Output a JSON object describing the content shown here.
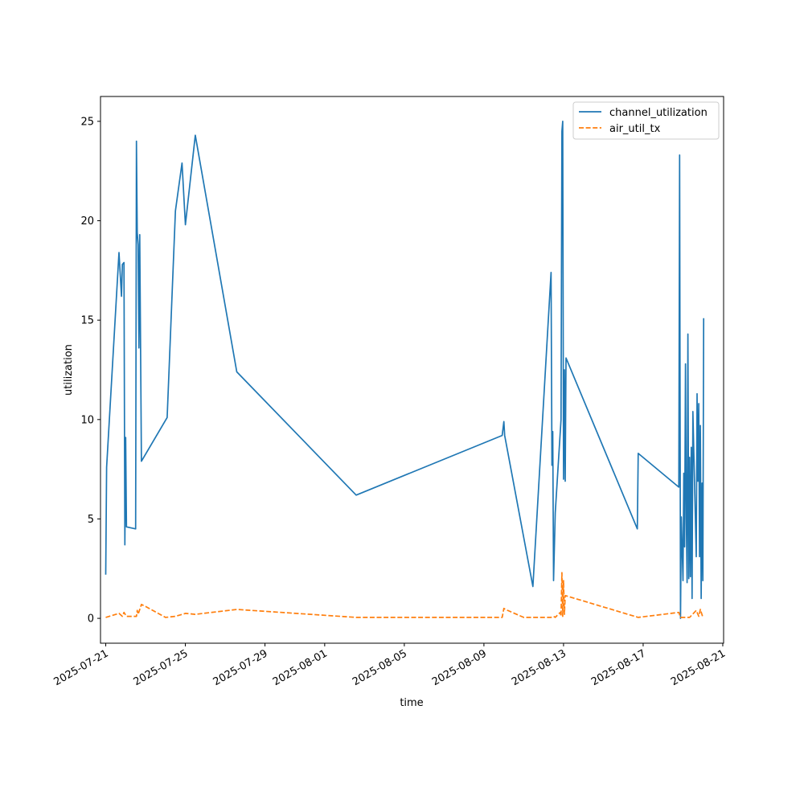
{
  "chart_data": {
    "type": "line",
    "title": "",
    "xlabel": "time",
    "ylabel": "utilization",
    "x_axis": "date",
    "xlim": [
      "2025-07-20T17:40",
      "2025-08-21T01:00"
    ],
    "ylim": [
      -1.25,
      26.25
    ],
    "yticks": [
      0,
      5,
      10,
      15,
      20,
      25
    ],
    "xticks": [
      "2025-07-21",
      "2025-07-25",
      "2025-07-29",
      "2025-08-01",
      "2025-08-05",
      "2025-08-09",
      "2025-08-13",
      "2025-08-17",
      "2025-08-21"
    ],
    "grid": false,
    "legend_position": "top-right",
    "series": [
      {
        "name": "channel_utilization",
        "color": "#1f77b4",
        "dash": "solid",
        "points": [
          [
            "2025-07-21T00:00",
            2.2
          ],
          [
            "2025-07-21T01:00",
            7.6
          ],
          [
            "2025-07-21T16:00",
            18.4
          ],
          [
            "2025-07-21T19:00",
            16.2
          ],
          [
            "2025-07-21T20:00",
            17.8
          ],
          [
            "2025-07-21T22:00",
            17.9
          ],
          [
            "2025-07-21T23:00",
            3.7
          ],
          [
            "2025-07-22T00:00",
            9.1
          ],
          [
            "2025-07-22T01:00",
            4.6
          ],
          [
            "2025-07-22T12:00",
            4.5
          ],
          [
            "2025-07-22T13:00",
            24.0
          ],
          [
            "2025-07-22T14:00",
            19.4
          ],
          [
            "2025-07-22T15:00",
            18.8
          ],
          [
            "2025-07-22T16:00",
            13.6
          ],
          [
            "2025-07-22T17:00",
            19.3
          ],
          [
            "2025-07-22T19:00",
            7.9
          ],
          [
            "2025-07-24T02:00",
            10.1
          ],
          [
            "2025-07-24T12:00",
            20.5
          ],
          [
            "2025-07-24T20:00",
            22.9
          ],
          [
            "2025-07-25T00:00",
            19.8
          ],
          [
            "2025-07-25T12:00",
            24.3
          ],
          [
            "2025-07-27T14:00",
            12.4
          ],
          [
            "2025-08-02T14:00",
            6.2
          ],
          [
            "2025-08-09T22:00",
            9.2
          ],
          [
            "2025-08-10T00:00",
            9.9
          ],
          [
            "2025-08-10T01:00",
            9.2
          ],
          [
            "2025-08-11T11:00",
            1.6
          ],
          [
            "2025-08-12T09:00",
            17.4
          ],
          [
            "2025-08-12T10:00",
            7.7
          ],
          [
            "2025-08-12T11:00",
            9.4
          ],
          [
            "2025-08-12T12:00",
            1.9
          ],
          [
            "2025-08-12T14:00",
            5.3
          ],
          [
            "2025-08-12T21:00",
            10.0
          ],
          [
            "2025-08-12T22:00",
            24.5
          ],
          [
            "2025-08-12T23:00",
            25.0
          ],
          [
            "2025-08-13T00:00",
            7.0
          ],
          [
            "2025-08-13T01:00",
            12.5
          ],
          [
            "2025-08-13T02:00",
            6.9
          ],
          [
            "2025-08-13T03:00",
            13.1
          ],
          [
            "2025-08-16T17:00",
            4.5
          ],
          [
            "2025-08-16T18:00",
            8.3
          ],
          [
            "2025-08-18T19:00",
            6.6
          ],
          [
            "2025-08-18T20:00",
            23.3
          ],
          [
            "2025-08-18T21:00",
            0.0
          ],
          [
            "2025-08-18T22:00",
            5.1
          ],
          [
            "2025-08-19T00:00",
            1.9
          ],
          [
            "2025-08-19T01:00",
            7.3
          ],
          [
            "2025-08-19T02:00",
            3.6
          ],
          [
            "2025-08-19T03:00",
            12.8
          ],
          [
            "2025-08-19T04:00",
            5.1
          ],
          [
            "2025-08-19T05:00",
            1.8
          ],
          [
            "2025-08-19T06:00",
            14.3
          ],
          [
            "2025-08-19T07:00",
            2.0
          ],
          [
            "2025-08-19T08:00",
            8.1
          ],
          [
            "2025-08-19T09:00",
            2.1
          ],
          [
            "2025-08-19T10:00",
            8.6
          ],
          [
            "2025-08-19T11:00",
            1.0
          ],
          [
            "2025-08-19T12:00",
            10.4
          ],
          [
            "2025-08-19T16:00",
            3.1
          ],
          [
            "2025-08-19T17:00",
            11.3
          ],
          [
            "2025-08-19T18:00",
            6.9
          ],
          [
            "2025-08-19T19:00",
            10.8
          ],
          [
            "2025-08-19T20:00",
            3.1
          ],
          [
            "2025-08-19T21:00",
            9.7
          ],
          [
            "2025-08-19T22:00",
            1.0
          ],
          [
            "2025-08-19T23:00",
            6.8
          ],
          [
            "2025-08-20T00:00",
            1.9
          ],
          [
            "2025-08-20T01:00",
            15.1
          ]
        ]
      },
      {
        "name": "air_util_tx",
        "color": "#ff7f0e",
        "dash": "dashed",
        "points": [
          [
            "2025-07-21T00:00",
            0.05
          ],
          [
            "2025-07-21T16:00",
            0.25
          ],
          [
            "2025-07-21T20:00",
            0.1
          ],
          [
            "2025-07-21T22:00",
            0.3
          ],
          [
            "2025-07-22T01:00",
            0.1
          ],
          [
            "2025-07-22T13:00",
            0.1
          ],
          [
            "2025-07-22T14:00",
            0.4
          ],
          [
            "2025-07-22T15:00",
            0.2
          ],
          [
            "2025-07-22T19:00",
            0.7
          ],
          [
            "2025-07-23T00:00",
            0.6
          ],
          [
            "2025-07-24T00:00",
            0.05
          ],
          [
            "2025-07-24T12:00",
            0.1
          ],
          [
            "2025-07-25T00:00",
            0.25
          ],
          [
            "2025-07-25T12:00",
            0.2
          ],
          [
            "2025-07-27T14:00",
            0.45
          ],
          [
            "2025-08-02T14:00",
            0.05
          ],
          [
            "2025-08-09T22:00",
            0.05
          ],
          [
            "2025-08-10T00:00",
            0.5
          ],
          [
            "2025-08-10T02:00",
            0.45
          ],
          [
            "2025-08-11T00:00",
            0.05
          ],
          [
            "2025-08-12T09:00",
            0.05
          ],
          [
            "2025-08-12T12:00",
            0.1
          ],
          [
            "2025-08-12T14:00",
            0.05
          ],
          [
            "2025-08-12T20:00",
            0.3
          ],
          [
            "2025-08-12T21:00",
            0.1
          ],
          [
            "2025-08-12T22:00",
            2.3
          ],
          [
            "2025-08-12T23:00",
            0.1
          ],
          [
            "2025-08-13T00:00",
            1.9
          ],
          [
            "2025-08-13T01:00",
            0.2
          ],
          [
            "2025-08-13T02:00",
            1.15
          ],
          [
            "2025-08-16T18:00",
            0.05
          ],
          [
            "2025-08-18T19:00",
            0.3
          ],
          [
            "2025-08-18T21:00",
            0.05
          ],
          [
            "2025-08-19T00:00",
            0.05
          ],
          [
            "2025-08-19T08:00",
            0.05
          ],
          [
            "2025-08-19T16:00",
            0.4
          ],
          [
            "2025-08-19T19:00",
            0.1
          ],
          [
            "2025-08-19T21:00",
            0.45
          ],
          [
            "2025-08-20T00:00",
            0.05
          ]
        ]
      }
    ]
  }
}
